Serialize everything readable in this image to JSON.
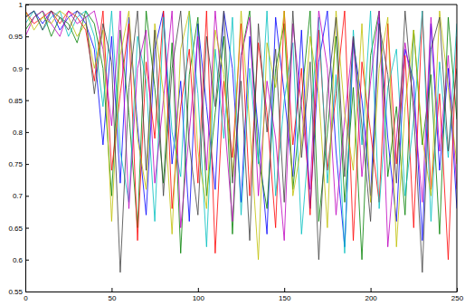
{
  "chart_data": {
    "type": "line",
    "x": [
      0,
      5,
      10,
      15,
      20,
      25,
      30,
      35,
      40,
      45,
      50,
      55,
      60,
      65,
      70,
      75,
      80,
      85,
      90,
      95,
      100,
      105,
      110,
      115,
      120,
      125,
      130,
      135,
      140,
      145,
      150,
      155,
      160,
      165,
      170,
      175,
      180,
      185,
      190,
      195,
      200,
      205,
      210,
      215,
      220,
      225,
      230,
      235,
      240,
      245,
      250
    ],
    "xlim": [
      0,
      250
    ],
    "xticks": [
      0,
      50,
      100,
      150,
      200,
      250
    ],
    "ylim": [
      0.55,
      1
    ],
    "yticks": [
      0.55,
      0.6,
      0.65,
      0.7,
      0.75,
      0.8,
      0.85,
      0.9,
      0.95,
      1
    ],
    "grid": false,
    "series": [
      {
        "color": "#0000ff",
        "values": [
          0.98,
          0.99,
          0.97,
          0.99,
          0.96,
          0.98,
          0.99,
          0.97,
          0.93,
          0.78,
          0.95,
          0.72,
          0.98,
          0.81,
          0.67,
          0.93,
          0.99,
          0.75,
          0.88,
          0.66,
          0.97,
          0.84,
          0.71,
          0.99,
          0.9,
          0.69,
          0.95,
          0.8,
          0.64,
          0.98,
          0.86,
          0.73,
          0.96,
          0.68,
          0.91,
          0.99,
          0.77,
          0.62,
          0.94,
          0.85,
          0.7,
          0.98,
          0.79,
          0.66,
          0.93,
          0.88,
          0.63,
          0.97,
          0.74,
          0.9,
          0.68
        ]
      },
      {
        "color": "#008000",
        "values": [
          0.96,
          0.98,
          0.99,
          0.95,
          0.98,
          0.97,
          0.94,
          0.99,
          0.97,
          0.9,
          0.7,
          0.96,
          0.83,
          0.65,
          0.99,
          0.87,
          0.72,
          0.94,
          0.61,
          0.89,
          0.98,
          0.7,
          0.83,
          0.95,
          0.64,
          0.92,
          0.99,
          0.76,
          0.68,
          0.9,
          0.97,
          0.71,
          0.85,
          0.99,
          0.66,
          0.8,
          0.95,
          0.69,
          0.87,
          0.6,
          0.92,
          0.99,
          0.73,
          0.84,
          0.67,
          0.96,
          0.78,
          0.89,
          0.64,
          0.98,
          0.82
        ]
      },
      {
        "color": "#ff0000",
        "values": [
          0.99,
          0.97,
          0.98,
          0.99,
          0.97,
          0.99,
          0.98,
          0.96,
          0.88,
          0.99,
          0.74,
          0.86,
          0.97,
          0.63,
          0.91,
          0.79,
          0.99,
          0.68,
          0.84,
          0.93,
          0.72,
          0.99,
          0.61,
          0.88,
          0.76,
          0.97,
          0.7,
          0.94,
          0.83,
          0.65,
          0.99,
          0.78,
          0.9,
          0.67,
          0.96,
          0.74,
          0.86,
          0.99,
          0.63,
          0.91,
          0.8,
          0.69,
          0.97,
          0.75,
          0.92,
          0.65,
          0.99,
          0.71,
          0.86,
          0.6,
          0.95
        ]
      },
      {
        "color": "#00bfbf",
        "values": [
          0.97,
          0.99,
          0.96,
          0.98,
          0.99,
          0.95,
          0.98,
          0.99,
          0.95,
          0.84,
          0.99,
          0.77,
          0.69,
          0.95,
          0.88,
          0.66,
          0.98,
          0.8,
          0.73,
          0.99,
          0.86,
          0.62,
          0.93,
          0.79,
          0.98,
          0.67,
          0.9,
          0.75,
          0.99,
          0.7,
          0.85,
          0.94,
          0.64,
          0.81,
          0.98,
          0.72,
          0.89,
          0.61,
          0.96,
          0.78,
          0.99,
          0.68,
          0.87,
          0.93,
          0.7,
          0.82,
          0.99,
          0.66,
          0.91,
          0.76,
          0.97
        ]
      },
      {
        "color": "#bf00bf",
        "values": [
          0.95,
          0.98,
          0.99,
          0.97,
          0.95,
          0.99,
          0.97,
          0.98,
          0.99,
          0.93,
          0.81,
          0.99,
          0.68,
          0.9,
          0.96,
          0.72,
          0.85,
          0.99,
          0.65,
          0.8,
          0.95,
          0.74,
          0.99,
          0.83,
          0.66,
          0.92,
          0.98,
          0.7,
          0.88,
          0.79,
          0.63,
          0.97,
          0.84,
          0.71,
          0.99,
          0.9,
          0.67,
          0.82,
          0.95,
          0.73,
          0.88,
          0.99,
          0.62,
          0.79,
          0.94,
          0.85,
          0.69,
          0.98,
          0.77,
          0.92,
          0.71
        ]
      },
      {
        "color": "#bfbf00",
        "values": [
          0.99,
          0.96,
          0.98,
          0.97,
          0.99,
          0.98,
          0.95,
          0.97,
          0.9,
          0.96,
          0.66,
          0.92,
          0.99,
          0.79,
          0.71,
          0.97,
          0.86,
          0.64,
          0.93,
          0.99,
          0.77,
          0.68,
          0.96,
          0.89,
          0.73,
          0.99,
          0.81,
          0.6,
          0.94,
          0.87,
          0.99,
          0.7,
          0.78,
          0.95,
          0.86,
          0.65,
          0.99,
          0.83,
          0.74,
          0.97,
          0.69,
          0.9,
          0.98,
          0.62,
          0.84,
          0.96,
          0.79,
          0.7,
          0.99,
          0.87,
          0.75
        ]
      },
      {
        "color": "#404040",
        "values": [
          0.98,
          0.99,
          0.96,
          0.99,
          0.98,
          0.96,
          0.99,
          0.98,
          0.86,
          0.97,
          0.91,
          0.58,
          0.87,
          0.99,
          0.74,
          0.96,
          0.7,
          0.9,
          0.99,
          0.78,
          0.67,
          0.95,
          0.84,
          0.99,
          0.72,
          0.88,
          0.63,
          0.97,
          0.8,
          0.93,
          0.69,
          0.99,
          0.76,
          0.91,
          0.6,
          0.86,
          0.98,
          0.73,
          0.95,
          0.81,
          0.66,
          0.97,
          0.89,
          0.72,
          0.99,
          0.83,
          0.58,
          0.93,
          0.98,
          0.77,
          0.9
        ]
      }
    ]
  }
}
